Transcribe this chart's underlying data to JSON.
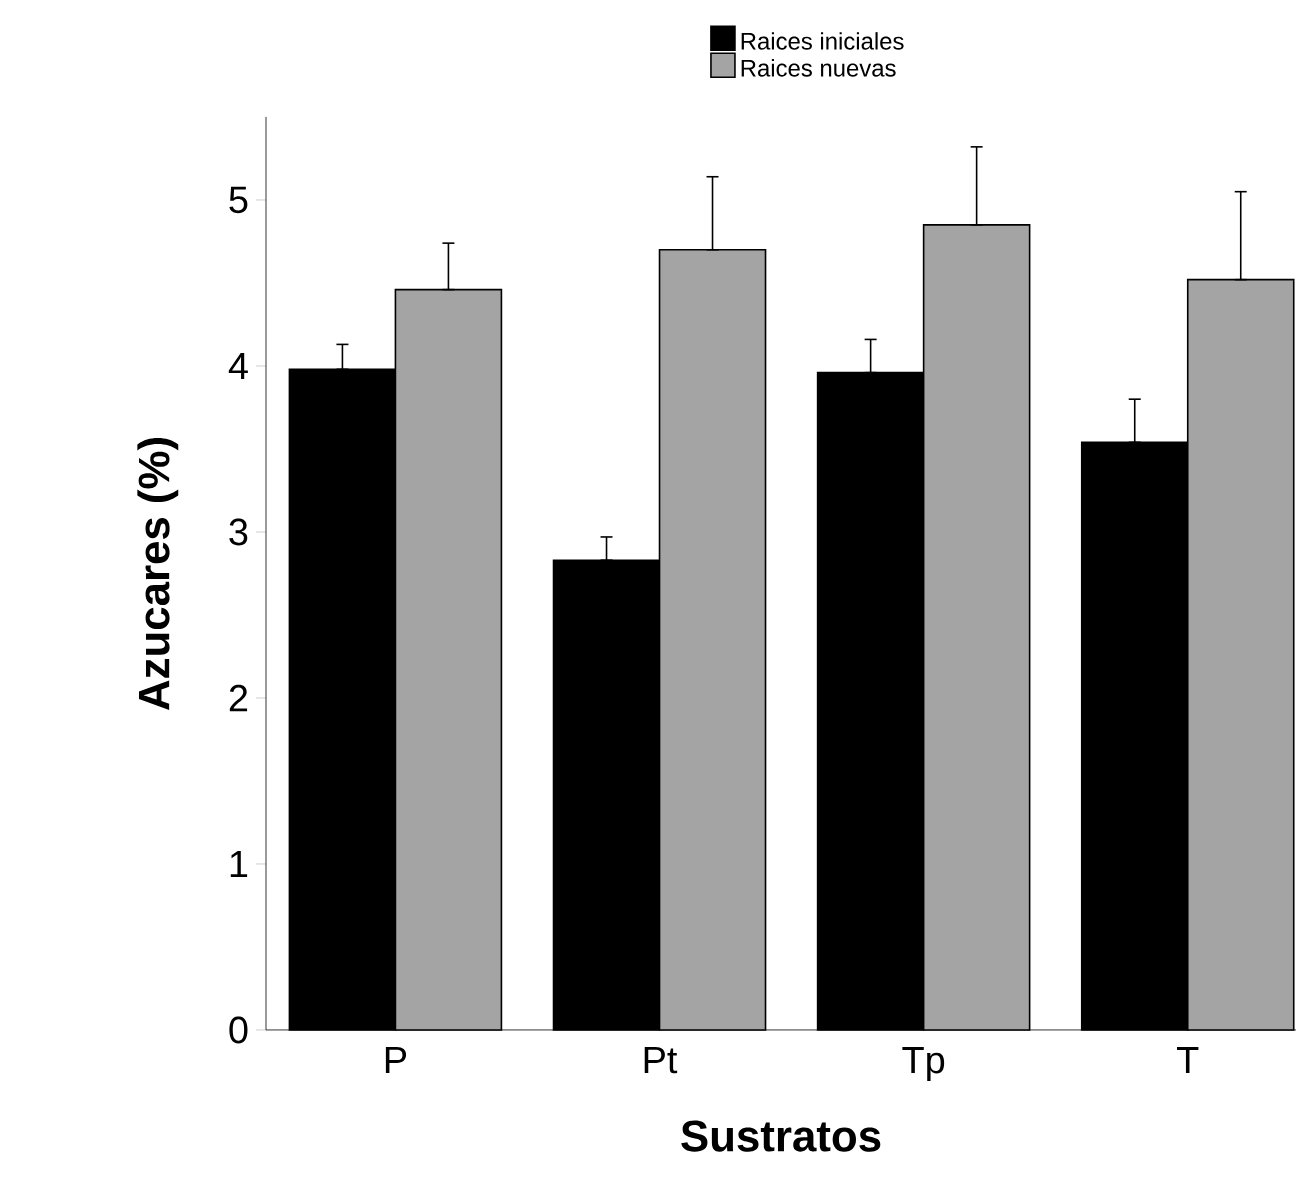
{
  "chart_data": {
    "type": "bar",
    "xlabel": "Sustratos",
    "ylabel": "Azucares (%)",
    "categories": [
      "P",
      "Pt",
      "Tp",
      "T"
    ],
    "series": [
      {
        "name": "Raices iniciales",
        "color": "#000000",
        "values": [
          3.98,
          2.83,
          3.96,
          3.54
        ],
        "errors": [
          [
            3.98,
            4.13
          ],
          [
            2.83,
            2.97
          ],
          [
            3.96,
            4.16
          ],
          [
            3.54,
            3.8
          ]
        ]
      },
      {
        "name": "Raices nuevas",
        "color": "#a4a4a4",
        "values": [
          4.46,
          4.7,
          4.85,
          4.52
        ],
        "errors": [
          [
            4.46,
            4.74
          ],
          [
            4.7,
            5.14
          ],
          [
            4.85,
            5.32
          ],
          [
            4.52,
            5.05
          ]
        ]
      }
    ],
    "ylim": [
      0,
      5.5
    ],
    "yticks": [
      0,
      1,
      2,
      3,
      4,
      5
    ],
    "legend": "top right"
  }
}
